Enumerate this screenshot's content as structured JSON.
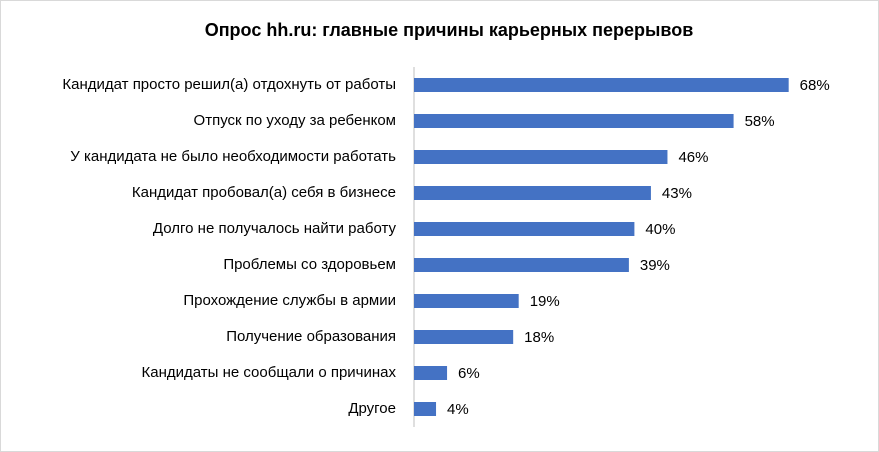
{
  "chart_data": {
    "type": "bar",
    "orientation": "horizontal",
    "title": "Опрос hh.ru: главные причины карьерных перерывов",
    "categories": [
      "Кандидат просто решил(а) отдохнуть от работы",
      "Отпуск по уходу за ребенком",
      "У кандидата не было необходимости работать",
      "Кандидат пробовал(а) себя в бизнесе",
      "Долго не получалось найти работу",
      "Проблемы со здоровьем",
      "Прохождение службы в армии",
      "Получение образования",
      "Кандидаты не сообщали о причинах",
      "Другое"
    ],
    "values": [
      68,
      58,
      46,
      43,
      40,
      39,
      19,
      18,
      6,
      4
    ],
    "value_labels": [
      "68%",
      "58%",
      "46%",
      "43%",
      "40%",
      "39%",
      "19%",
      "18%",
      "6%",
      "4%"
    ],
    "color": "#4472c4"
  }
}
